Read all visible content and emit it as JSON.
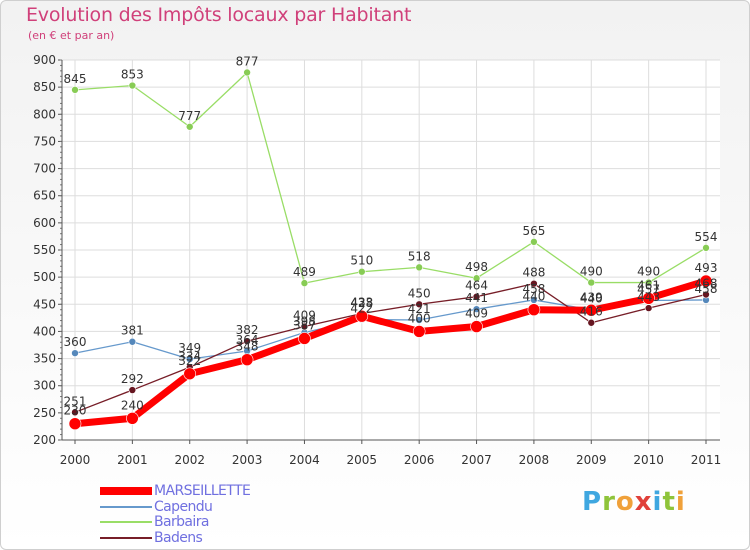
{
  "header": {
    "title": "Evolution des Impôts locaux par Habitant",
    "subtitle": "(en € et par an)"
  },
  "logo": {
    "text": "Proxiti",
    "letters": [
      {
        "ch": "P",
        "color": "#3fa7e0"
      },
      {
        "ch": "r",
        "color": "#8fc43a"
      },
      {
        "ch": "o",
        "color": "#f0a13a"
      },
      {
        "ch": "x",
        "color": "#e0403a"
      },
      {
        "ch": "i",
        "color": "#3fa7e0"
      },
      {
        "ch": "t",
        "color": "#8fc43a"
      },
      {
        "ch": "i",
        "color": "#f0a13a"
      }
    ]
  },
  "chart_data": {
    "type": "line",
    "title": "Evolution des Impôts locaux par Habitant",
    "subtitle": "(en € et par an)",
    "xlabel": "",
    "ylabel": "",
    "x": [
      "2000",
      "2001",
      "2002",
      "2003",
      "2004",
      "2005",
      "2006",
      "2007",
      "2008",
      "2009",
      "2010",
      "2011"
    ],
    "ylim": [
      200,
      900
    ],
    "yticks": [
      200,
      250,
      300,
      350,
      400,
      450,
      500,
      550,
      600,
      650,
      700,
      750,
      800,
      850,
      900
    ],
    "ytick_labels": [
      "200",
      "250",
      "300",
      "350",
      "400",
      "450",
      "500",
      "550",
      "600",
      "650",
      "700",
      "750",
      "800",
      "850",
      "900"
    ],
    "grid": true,
    "legend_position": "bottom-left",
    "series": [
      {
        "name": "Barbaira",
        "color": "#99dd66",
        "values": [
          845,
          853,
          777,
          877,
          489,
          510,
          518,
          498,
          565,
          490,
          490,
          554
        ],
        "labels": [
          "845",
          "853",
          "777",
          "877",
          "489",
          "510",
          "518",
          "498",
          "565",
          "490",
          "490",
          "554"
        ]
      },
      {
        "name": "Capendu",
        "color": "#6699cc",
        "values": [
          360,
          381,
          349,
          364,
          398,
          422,
          421,
          441,
          458,
          440,
          457,
          458
        ],
        "labels": [
          "360",
          "381",
          "349",
          "364",
          "398",
          "422",
          "421",
          "441",
          "458",
          "440",
          "457",
          "458"
        ]
      },
      {
        "name": "Badens",
        "color": "#771e28",
        "values": [
          251,
          292,
          334,
          382,
          409,
          433,
          450,
          464,
          488,
          416,
          443,
          468
        ],
        "labels": [
          "251",
          "292",
          "334",
          "382",
          "409",
          "433",
          "450",
          "464",
          "488",
          "416",
          "443",
          "468"
        ]
      },
      {
        "name": "MARSEILLETTE",
        "color": "#ff0000",
        "values": [
          230,
          240,
          322,
          348,
          387,
          428,
          400,
          409,
          440,
          439,
          461,
          493
        ],
        "labels": [
          "230",
          "240",
          "322",
          "348",
          "387",
          "428",
          "400",
          "409",
          "440",
          "439",
          "461",
          "493"
        ]
      }
    ],
    "legend": [
      "MARSEILLETTE",
      "Capendu",
      "Barbaira",
      "Badens"
    ]
  }
}
